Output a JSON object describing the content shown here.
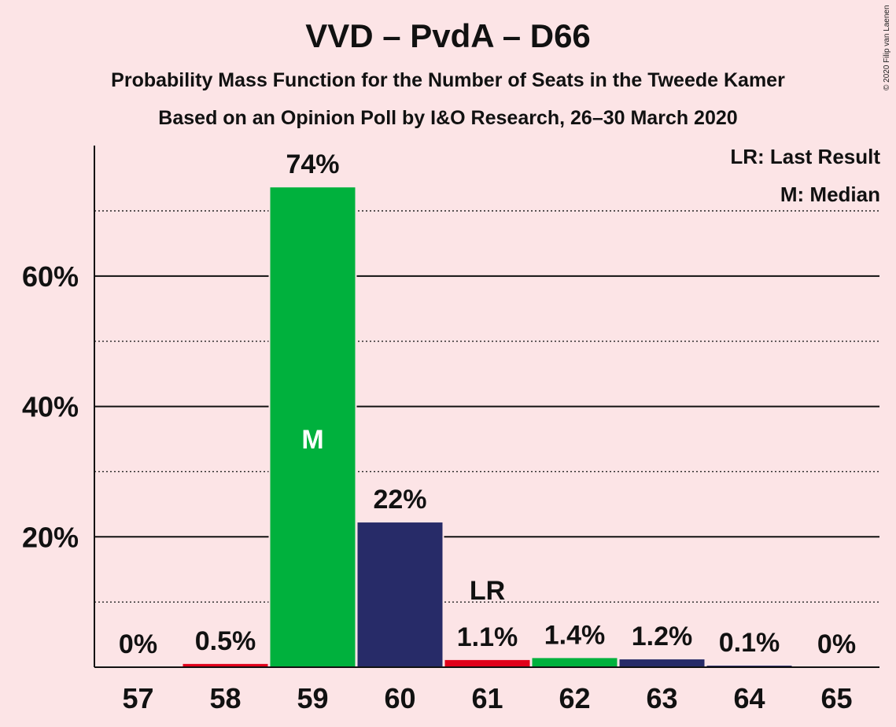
{
  "chart_data": {
    "type": "bar",
    "title": "VVD – PvdA – D66",
    "subtitle": "Probability Mass Function for the Number of Seats in the Tweede Kamer",
    "subtitle2": "Based on an Opinion Poll by I&O Research, 26–30 March 2020",
    "copyright": "© 2020 Filip van Laenen",
    "legend": {
      "lr": "LR: Last Result",
      "median": "M: Median",
      "placement": "top-right"
    },
    "categories": [
      "57",
      "58",
      "59",
      "60",
      "61",
      "62",
      "63",
      "64",
      "65"
    ],
    "values": [
      0,
      0.5,
      73.6,
      22.2,
      1.1,
      1.4,
      1.2,
      0.1,
      0
    ],
    "labels": [
      "0%",
      "0.5%",
      "74%",
      "22%",
      "1.1%",
      "1.4%",
      "1.2%",
      "0.1%",
      "0%"
    ],
    "colors": [
      "#e0001a",
      "#e0001a",
      "#00b13d",
      "#272b68",
      "#e0001a",
      "#00b13d",
      "#272b68",
      "#272b68",
      "#272b68"
    ],
    "median_index": 2,
    "median_marker": "M",
    "last_result_index": 4,
    "last_result_marker": "LR",
    "ylim": [
      0,
      80
    ],
    "y_major_ticks": [
      20,
      40,
      60
    ],
    "y_tick_labels": [
      "20%",
      "40%",
      "60%"
    ],
    "y_minor_ticks": [
      10,
      30,
      50,
      70
    ],
    "grid": true
  }
}
